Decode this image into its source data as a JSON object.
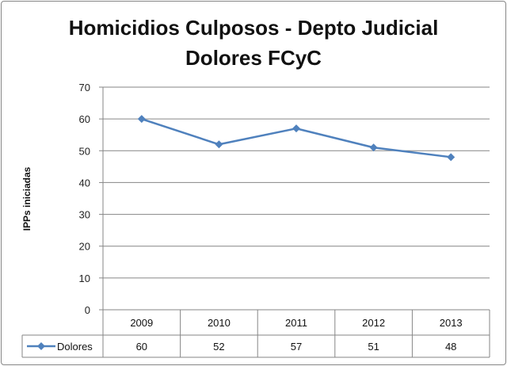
{
  "chart_data": {
    "type": "line",
    "title_line1": "Homicidios Culposos - Depto Judicial",
    "title_line2": "Dolores FCyC",
    "ylabel": "IPPs iniciadas",
    "xlabel": "",
    "categories": [
      "2009",
      "2010",
      "2011",
      "2012",
      "2013"
    ],
    "series": [
      {
        "name": "Dolores",
        "values": [
          60,
          52,
          57,
          51,
          48
        ],
        "color": "#4F81BD"
      }
    ],
    "ylim": [
      0,
      70
    ],
    "yticks": [
      0,
      10,
      20,
      30,
      40,
      50,
      60,
      70
    ],
    "grid": true,
    "data_table": true,
    "marker": "diamond"
  }
}
